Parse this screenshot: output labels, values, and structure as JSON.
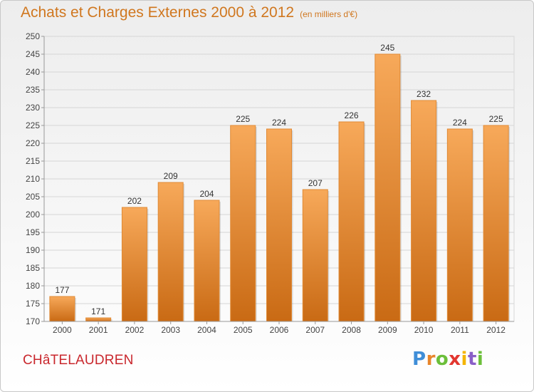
{
  "header": {
    "title": "Achats et Charges Externes 2000 à 2012",
    "unit": "(en milliers d'€)"
  },
  "footer": {
    "city": "CHâTELAUDREN",
    "logo": "Proxiti"
  },
  "colors": {
    "title": "#d0771f",
    "city": "#c9272d",
    "bar_top": "#f7a95a",
    "bar_bottom": "#c96a14"
  },
  "chart_data": {
    "type": "bar",
    "categories": [
      "2000",
      "2001",
      "2002",
      "2003",
      "2004",
      "2005",
      "2006",
      "2007",
      "2008",
      "2009",
      "2010",
      "2011",
      "2012"
    ],
    "values": [
      177,
      171,
      202,
      209,
      204,
      225,
      224,
      207,
      226,
      245,
      232,
      224,
      225
    ],
    "value_labels": [
      "177",
      "171",
      "202",
      "209",
      "204",
      "225",
      "224",
      "207",
      "226",
      "245",
      "232",
      "224",
      "225"
    ],
    "ylim": [
      170,
      250
    ],
    "yticks": [
      "170",
      "175",
      "180",
      "185",
      "190",
      "195",
      "200",
      "205",
      "210",
      "215",
      "220",
      "225",
      "230",
      "235",
      "240",
      "245",
      "250"
    ],
    "grid": true,
    "xlabel": "",
    "ylabel": ""
  }
}
